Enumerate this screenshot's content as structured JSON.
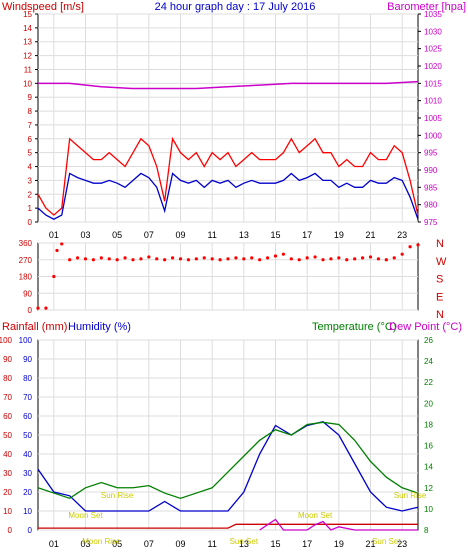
{
  "chart_data": [
    {
      "type": "line",
      "title": "24 hour graph day : 17 July 2016",
      "left_axis_label": "Windspeed [m/s]",
      "right_axis_label": "Barometer [hpa]",
      "x_ticks": [
        "01",
        "03",
        "05",
        "07",
        "09",
        "11",
        "13",
        "15",
        "17",
        "19",
        "21",
        "23"
      ],
      "ylim_left": [
        0,
        15
      ],
      "yticks_left": [
        0,
        1,
        2,
        3,
        4,
        5,
        6,
        7,
        8,
        9,
        10,
        11,
        12,
        13,
        14,
        15
      ],
      "ylim_right": [
        975,
        1035
      ],
      "yticks_right": [
        975,
        980,
        985,
        990,
        995,
        1000,
        1005,
        1010,
        1015,
        1020,
        1025,
        1030,
        1035
      ],
      "grid": true,
      "colors": {
        "gust": "#ff0000",
        "average": "#0000cc",
        "barometer": "#cc00cc",
        "text_left": "#cc0000",
        "text_right": "#cc00cc"
      },
      "series": [
        {
          "name": "gust",
          "axis": "left",
          "x": [
            0,
            0.5,
            1,
            1.5,
            2,
            2.5,
            3,
            3.5,
            4,
            4.5,
            5,
            5.5,
            6,
            6.5,
            7,
            7.5,
            8,
            8.5,
            9,
            9.5,
            10,
            10.5,
            11,
            11.5,
            12,
            12.5,
            13,
            13.5,
            14,
            14.5,
            15,
            15.5,
            16,
            16.5,
            17,
            17.5,
            18,
            18.5,
            19,
            19.5,
            20,
            20.5,
            21,
            21.5,
            22,
            22.5,
            23,
            23.5,
            24
          ],
          "values": [
            2,
            1,
            0.5,
            1,
            6,
            5.5,
            5,
            4.5,
            4.5,
            5,
            4.5,
            4,
            5,
            6,
            5.5,
            4,
            1.5,
            6,
            5,
            4.5,
            5,
            4,
            5,
            4.5,
            5,
            4,
            4.5,
            5,
            4.5,
            4.5,
            4.5,
            5,
            6,
            5,
            5.5,
            6,
            5,
            5,
            4,
            4.5,
            4,
            4,
            5,
            4.5,
            4.5,
            5.5,
            5,
            3,
            0.5
          ]
        },
        {
          "name": "average",
          "axis": "left",
          "x": [
            0,
            0.5,
            1,
            1.5,
            2,
            2.5,
            3,
            3.5,
            4,
            4.5,
            5,
            5.5,
            6,
            6.5,
            7,
            7.5,
            8,
            8.5,
            9,
            9.5,
            10,
            10.5,
            11,
            11.5,
            12,
            12.5,
            13,
            13.5,
            14,
            14.5,
            15,
            15.5,
            16,
            16.5,
            17,
            17.5,
            18,
            18.5,
            19,
            19.5,
            20,
            20.5,
            21,
            21.5,
            22,
            22.5,
            23,
            23.5,
            24
          ],
          "values": [
            1,
            0.5,
            0.2,
            0.5,
            3.5,
            3.2,
            3,
            2.8,
            2.8,
            3,
            2.8,
            2.5,
            3,
            3.5,
            3.2,
            2.5,
            0.8,
            3.5,
            3,
            2.8,
            3,
            2.5,
            3,
            2.8,
            3,
            2.5,
            2.8,
            3,
            2.8,
            2.8,
            2.8,
            3,
            3.5,
            3,
            3.2,
            3.5,
            3,
            3,
            2.5,
            2.8,
            2.5,
            2.5,
            3,
            2.8,
            2.8,
            3.2,
            3,
            1.8,
            0.2
          ]
        },
        {
          "name": "barometer",
          "axis": "right",
          "x": [
            0,
            2,
            4,
            6,
            8,
            10,
            12,
            14,
            16,
            18,
            20,
            22,
            24
          ],
          "values": [
            1015,
            1015,
            1014,
            1013.5,
            1013.5,
            1013.5,
            1014,
            1014.5,
            1015,
            1015,
            1015,
            1015,
            1015.5
          ]
        }
      ]
    },
    {
      "type": "scatter",
      "series_name": "wind direction",
      "x_ticks": [
        "01",
        "03",
        "05",
        "07",
        "09",
        "11",
        "13",
        "15",
        "17",
        "19",
        "21",
        "23"
      ],
      "ylim": [
        0,
        360
      ],
      "yticks": [
        0,
        90,
        180,
        270,
        360
      ],
      "right_labels": [
        "N",
        "W",
        "S",
        "E",
        "N"
      ],
      "colors": {
        "points": "#ff0000",
        "labels": "#cc0000"
      },
      "x": [
        0,
        0.5,
        1,
        1.2,
        1.5,
        2,
        2.5,
        3,
        3.5,
        4,
        4.5,
        5,
        5.5,
        6,
        6.5,
        7,
        7.5,
        8,
        8.5,
        9,
        9.5,
        10,
        10.5,
        11,
        11.5,
        12,
        12.5,
        13,
        13.5,
        14,
        14.5,
        15,
        15.5,
        16,
        16.5,
        17,
        17.5,
        18,
        18.5,
        19,
        19.5,
        20,
        20.5,
        21,
        21.5,
        22,
        22.5,
        23,
        23.5,
        24
      ],
      "values": [
        10,
        10,
        180,
        320,
        355,
        270,
        280,
        275,
        270,
        280,
        275,
        270,
        280,
        270,
        275,
        285,
        275,
        270,
        280,
        275,
        270,
        275,
        280,
        275,
        270,
        275,
        280,
        275,
        280,
        270,
        280,
        290,
        300,
        275,
        270,
        280,
        285,
        270,
        275,
        280,
        270,
        275,
        280,
        285,
        275,
        270,
        280,
        300,
        340,
        350
      ]
    },
    {
      "type": "line",
      "left_axis_labels": [
        "Rainfall (mm)",
        "Humidity (%)"
      ],
      "right_axis_labels": [
        "Temperature (°C)",
        "Dew Point (°C)"
      ],
      "x_ticks": [
        "01",
        "03",
        "05",
        "07",
        "09",
        "11",
        "13",
        "15",
        "17",
        "19",
        "21",
        "23"
      ],
      "ylim_left": [
        0,
        100
      ],
      "yticks_left": [
        0,
        10,
        20,
        30,
        40,
        50,
        60,
        70,
        80,
        90,
        100
      ],
      "ylim_right": [
        8,
        26
      ],
      "yticks_right": [
        8,
        10,
        12,
        14,
        16,
        18,
        20,
        22,
        24,
        26
      ],
      "annotations": [
        "Sun Rise",
        "Sun Set",
        "Moon Set",
        "Moon Rise",
        "Moon Set",
        "Sun Set",
        "Sun Rise"
      ],
      "grid": true,
      "colors": {
        "humidity": "#0000cc",
        "temperature": "#008000",
        "rainfall": "#cc0000",
        "dewpoint": "#cc00cc",
        "annotation": "#cccc00",
        "rain_label": "#cc0000",
        "humidity_label": "#0000cc",
        "temp_label": "#008000",
        "dew_label": "#cc00cc"
      },
      "series": [
        {
          "name": "Humidity",
          "axis": "left",
          "x": [
            0,
            1,
            2,
            3,
            4,
            5,
            6,
            7,
            8,
            9,
            10,
            11,
            12,
            13,
            14,
            15,
            16,
            17,
            18,
            19,
            20,
            21,
            22,
            23,
            24
          ],
          "values": [
            32,
            20,
            18,
            10,
            10,
            10,
            10,
            10,
            15,
            10,
            10,
            10,
            10,
            20,
            40,
            55,
            50,
            55,
            57,
            50,
            35,
            20,
            12,
            10,
            12
          ]
        },
        {
          "name": "Temperature",
          "axis": "right",
          "x": [
            0,
            1,
            2,
            3,
            4,
            5,
            6,
            7,
            8,
            9,
            10,
            11,
            12,
            13,
            14,
            15,
            16,
            17,
            18,
            19,
            20,
            21,
            22,
            23,
            24
          ],
          "values": [
            12,
            11.5,
            11,
            12,
            12.5,
            12,
            12,
            12.2,
            11.5,
            11,
            11.5,
            12,
            13.5,
            15,
            16.5,
            17.5,
            17,
            18,
            18.2,
            18,
            16.5,
            14.5,
            13,
            12,
            11.5
          ]
        },
        {
          "name": "Rainfall",
          "axis": "left",
          "x": [
            0,
            12,
            12.5,
            24
          ],
          "values": [
            1,
            1,
            3,
            3
          ]
        },
        {
          "name": "Dew Point",
          "axis": "right",
          "x": [
            14,
            14.5,
            15,
            15.5,
            17,
            17.5,
            18,
            18.5,
            19,
            20,
            22,
            24
          ],
          "values": [
            8,
            8.5,
            9,
            8,
            8,
            8.5,
            8.8,
            8,
            8.3,
            8,
            8,
            8
          ]
        }
      ]
    }
  ]
}
